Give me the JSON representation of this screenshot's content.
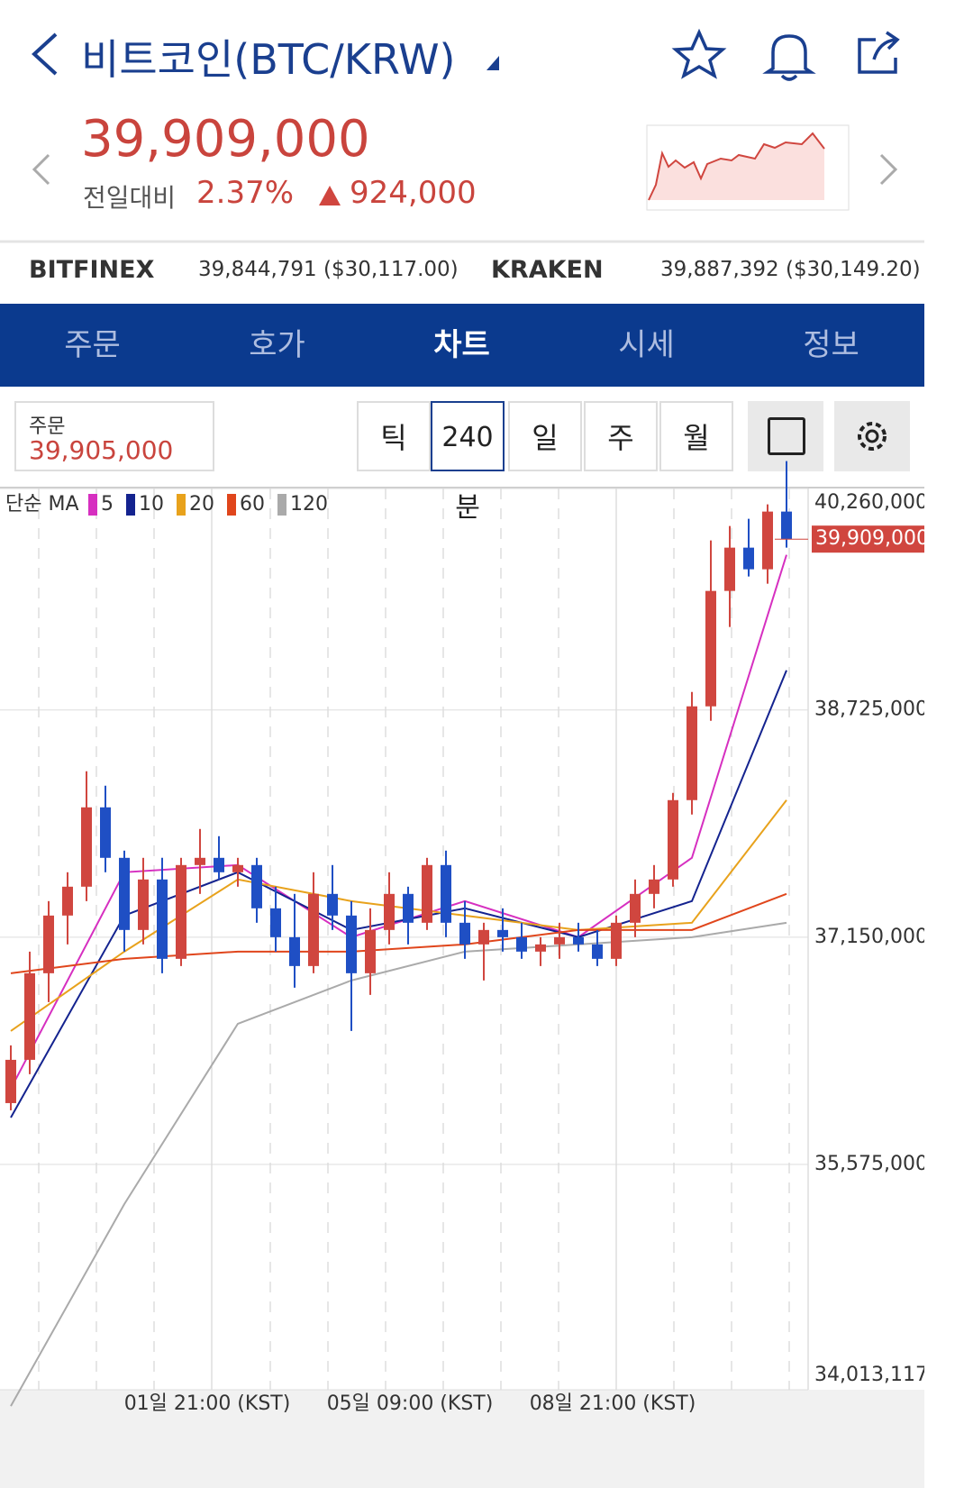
{
  "header": {
    "title": "비트코인(BTC/KRW)",
    "price": "39,909,000",
    "change_label": "전일대비",
    "change_rate": "2.37%",
    "change_amount": "924,000"
  },
  "exchanges": [
    {
      "name": "BITFINEX",
      "price": "39,844,791 ($30,117.00)"
    },
    {
      "name": "KRAKEN",
      "price": "39,887,392 ($30,149.20)"
    }
  ],
  "tabs": [
    "주문",
    "호가",
    "차트",
    "시세",
    "정보"
  ],
  "order_box": {
    "label": "주문",
    "price": "39,905,000"
  },
  "periods": [
    "틱",
    "240분",
    "일",
    "주",
    "월"
  ],
  "chart_data": {
    "type": "candlestick",
    "legend_title": "단순 MA",
    "ylim": [
      34013117,
      40260000
    ],
    "yticks": [
      {
        "value": 40260000,
        "label": "40,260,000"
      },
      {
        "value": 38725000,
        "label": "38,725,000"
      },
      {
        "value": 37150000,
        "label": "37,150,000"
      },
      {
        "value": 35575000,
        "label": "35,575,000"
      },
      {
        "value": 34013117,
        "label": "34,013,117"
      }
    ],
    "current_price": {
      "value": 39909000,
      "label": "39,909,000"
    },
    "x_labels": [
      "01일 21:00 (KST)",
      "05일 09:00 (KST)",
      "08일 21:00 (KST)"
    ],
    "up_color": "#d0463f",
    "down_color": "#1f4fc4",
    "candles": [
      [
        36000000,
        36400000,
        35950000,
        36300000
      ],
      [
        36300000,
        37050000,
        36200000,
        36900000
      ],
      [
        36900000,
        37400000,
        36700000,
        37300000
      ],
      [
        37300000,
        37600000,
        37100000,
        37500000
      ],
      [
        37500000,
        38300000,
        37400000,
        38050000
      ],
      [
        38050000,
        38200000,
        37600000,
        37700000
      ],
      [
        37700000,
        37750000,
        37050000,
        37200000
      ],
      [
        37200000,
        37700000,
        37100000,
        37550000
      ],
      [
        37550000,
        37700000,
        36900000,
        37000000
      ],
      [
        37000000,
        37700000,
        36950000,
        37650000
      ],
      [
        37650000,
        37900000,
        37450000,
        37700000
      ],
      [
        37700000,
        37850000,
        37550000,
        37600000
      ],
      [
        37600000,
        37700000,
        37500000,
        37650000
      ],
      [
        37650000,
        37700000,
        37250000,
        37350000
      ],
      [
        37350000,
        37500000,
        37050000,
        37150000
      ],
      [
        37150000,
        37450000,
        36800000,
        36950000
      ],
      [
        36950000,
        37600000,
        36900000,
        37450000
      ],
      [
        37450000,
        37650000,
        37200000,
        37300000
      ],
      [
        37300000,
        37400000,
        36500000,
        36900000
      ],
      [
        36900000,
        37350000,
        36750000,
        37200000
      ],
      [
        37200000,
        37600000,
        37100000,
        37450000
      ],
      [
        37450000,
        37500000,
        37100000,
        37250000
      ],
      [
        37250000,
        37700000,
        37200000,
        37650000
      ],
      [
        37650000,
        37750000,
        37150000,
        37250000
      ],
      [
        37250000,
        37400000,
        37000000,
        37100000
      ],
      [
        37100000,
        37250000,
        36850000,
        37200000
      ],
      [
        37200000,
        37350000,
        37050000,
        37150000
      ],
      [
        37150000,
        37250000,
        37000000,
        37050000
      ],
      [
        37050000,
        37150000,
        36950000,
        37100000
      ],
      [
        37100000,
        37250000,
        37000000,
        37150000
      ],
      [
        37150000,
        37250000,
        37050000,
        37100000
      ],
      [
        37100000,
        37200000,
        36950000,
        37000000
      ],
      [
        37000000,
        37300000,
        36950000,
        37250000
      ],
      [
        37250000,
        37550000,
        37150000,
        37450000
      ],
      [
        37450000,
        37650000,
        37350000,
        37550000
      ],
      [
        37550000,
        38150000,
        37500000,
        38100000
      ],
      [
        38100000,
        38850000,
        38000000,
        38750000
      ],
      [
        38750000,
        39900000,
        38650000,
        39550000
      ],
      [
        39550000,
        40000000,
        39300000,
        39850000
      ],
      [
        39850000,
        40050000,
        39650000,
        39700000
      ],
      [
        39700000,
        40150000,
        39600000,
        40100000
      ],
      [
        40100000,
        40450000,
        39850000,
        39909000
      ]
    ],
    "ma_x": [
      0,
      6,
      12,
      18,
      24,
      30,
      36,
      41
    ],
    "series": [
      {
        "name": "5",
        "color": "#d62fc0",
        "values": [
          36100000,
          37600000,
          37650000,
          37150000,
          37400000,
          37150000,
          37700000,
          39800000
        ]
      },
      {
        "name": "10",
        "color": "#14238f",
        "values": [
          35900000,
          37300000,
          37600000,
          37200000,
          37350000,
          37150000,
          37400000,
          39000000
        ]
      },
      {
        "name": "20",
        "color": "#e8a21c",
        "values": [
          36500000,
          37050000,
          37550000,
          37400000,
          37300000,
          37200000,
          37250000,
          38100000
        ]
      },
      {
        "name": "60",
        "color": "#e0461c",
        "values": [
          36900000,
          37000000,
          37050000,
          37050000,
          37100000,
          37200000,
          37200000,
          37450000
        ]
      },
      {
        "name": "120",
        "color": "#aaaaaa",
        "values": [
          33900000,
          35300000,
          36550000,
          36850000,
          37050000,
          37100000,
          37150000,
          37250000
        ]
      }
    ]
  }
}
